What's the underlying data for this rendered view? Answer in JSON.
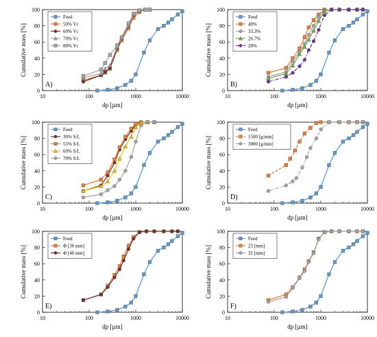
{
  "chart_data": [
    {
      "type": "line",
      "panel_label": "A)",
      "xlabel": "dp [µm]",
      "ylabel": "Cumulative mass [%]",
      "xscale": "log",
      "xlim": [
        10,
        10000
      ],
      "ylim": [
        0,
        100
      ],
      "xticks": [
        "10",
        "100",
        "1000",
        "10000"
      ],
      "yticks": [
        "0",
        "20",
        "40",
        "60",
        "80",
        "100"
      ],
      "grid": false,
      "legend_position": "top-left",
      "series": [
        {
          "name": "Feed",
          "color": "#5b9bd5",
          "marker": "square",
          "dash": "solid",
          "x": [
            150,
            250,
            400,
            600,
            800,
            1000,
            1500,
            2000,
            3000,
            4000,
            5000,
            6000,
            8000,
            10000
          ],
          "y": [
            0,
            1,
            3,
            7,
            12,
            20,
            47,
            62,
            76,
            80,
            84,
            88,
            94,
            98
          ]
        },
        {
          "name": "50% Vc",
          "color": "#ed7d31",
          "marker": "square",
          "dash": "solid",
          "x": [
            75,
            180,
            220,
            280,
            400,
            500,
            700,
            900,
            1200,
            1600,
            2000
          ],
          "y": [
            13,
            19,
            22,
            27,
            50,
            62,
            77,
            90,
            97,
            100,
            100
          ]
        },
        {
          "name": "60% Vc",
          "color": "#7b2c2c",
          "marker": "circle",
          "dash": "solid",
          "x": [
            75,
            180,
            220,
            280,
            400,
            500,
            700,
            900,
            1200,
            1600,
            2000
          ],
          "y": [
            11,
            19,
            23,
            28,
            52,
            64,
            80,
            93,
            99,
            100,
            100
          ]
        },
        {
          "name": "70% Vc",
          "color": "#a5a5a5",
          "marker": "triangle",
          "dash": "solid",
          "x": [
            75,
            180,
            220,
            280,
            400,
            500,
            700,
            900,
            1200,
            1600,
            2000
          ],
          "y": [
            16,
            21,
            27,
            31,
            54,
            65,
            81,
            94,
            99,
            100,
            100
          ]
        },
        {
          "name": "80% Vc",
          "color": "#a5a5a5",
          "marker": "square",
          "dash": "solid",
          "x": [
            75,
            180,
            220,
            280,
            400,
            500,
            700,
            900,
            1200,
            1600,
            2000
          ],
          "y": [
            18,
            26,
            34,
            44,
            56,
            66,
            83,
            95,
            99,
            100,
            100
          ]
        }
      ]
    },
    {
      "type": "line",
      "panel_label": "B)",
      "xlabel": "dp [µm]",
      "ylabel": "Cumulative mass [%]",
      "xscale": "log",
      "xlim": [
        10,
        10000
      ],
      "ylim": [
        0,
        100
      ],
      "xticks": [
        "10",
        "100",
        "1000",
        "10000"
      ],
      "yticks": [
        "0",
        "20",
        "40",
        "60",
        "80",
        "100"
      ],
      "grid": false,
      "legend_position": "top-left",
      "series": [
        {
          "name": "Feed",
          "color": "#5b9bd5",
          "marker": "square",
          "dash": "solid",
          "x": [
            150,
            250,
            400,
            600,
            800,
            1000,
            1500,
            2000,
            3000,
            4000,
            5000,
            6000,
            8000,
            10000
          ],
          "y": [
            0,
            1,
            3,
            7,
            12,
            20,
            47,
            62,
            76,
            80,
            84,
            88,
            94,
            98
          ]
        },
        {
          "name": "40%",
          "color": "#ed7d31",
          "marker": "square",
          "dash": "solid",
          "x": [
            75,
            180,
            250,
            350,
            450,
            550,
            700,
            900,
            1200,
            1700,
            2500,
            4000,
            6000,
            8000
          ],
          "y": [
            22,
            28,
            40,
            52,
            66,
            78,
            87,
            94,
            100,
            100,
            100,
            100,
            100,
            100
          ]
        },
        {
          "name": "33.3%",
          "color": "#a5a5a5",
          "marker": "circle",
          "dash": "solid",
          "x": [
            75,
            180,
            250,
            350,
            450,
            550,
            700,
            900,
            1200,
            1700,
            2500,
            4000,
            6000,
            8000
          ],
          "y": [
            17,
            23,
            36,
            48,
            58,
            69,
            80,
            91,
            99,
            100,
            100,
            100,
            100,
            100
          ]
        },
        {
          "name": "26.7%",
          "color": "#70ad47",
          "marker": "triangle",
          "dash": "solid",
          "x": [
            75,
            180,
            250,
            350,
            450,
            550,
            700,
            900,
            1200,
            1700,
            2500,
            4000,
            6000,
            8000
          ],
          "y": [
            15,
            21,
            31,
            45,
            54,
            63,
            74,
            86,
            98,
            100,
            100,
            100,
            100,
            100
          ]
        },
        {
          "name": "20%",
          "color": "#7030a0",
          "marker": "circle",
          "dash": "dashdot",
          "x": [
            75,
            180,
            250,
            350,
            450,
            550,
            700,
            900,
            1200,
            1700,
            2500,
            4000,
            6000,
            8000
          ],
          "y": [
            11,
            17,
            22,
            30,
            38,
            50,
            61,
            75,
            93,
            100,
            100,
            100,
            100,
            100
          ]
        }
      ]
    },
    {
      "type": "line",
      "panel_label": "C)",
      "xlabel": "dp [µm]",
      "ylabel": "Cumulative mass [%]",
      "xscale": "log",
      "xlim": [
        10,
        10000
      ],
      "ylim": [
        0,
        100
      ],
      "xticks": [
        "10",
        "100",
        "1000",
        "10000"
      ],
      "yticks": [
        "0",
        "20",
        "40",
        "60",
        "80",
        "100"
      ],
      "grid": false,
      "legend_position": "top-left",
      "series": [
        {
          "name": "Feed",
          "color": "#5b9bd5",
          "marker": "square",
          "dash": "solid",
          "x": [
            150,
            250,
            400,
            600,
            800,
            1000,
            1500,
            2000,
            3000,
            4000,
            5000,
            6000,
            8000,
            10000
          ],
          "y": [
            0,
            1,
            3,
            7,
            12,
            20,
            47,
            62,
            76,
            80,
            84,
            88,
            94,
            98
          ]
        },
        {
          "name": "30% S/L",
          "color": "#7b2c2c",
          "marker": "circle",
          "dash": "solid",
          "x": [
            75,
            180,
            250,
            350,
            450,
            600,
            800,
            1000,
            1300,
            1800,
            2500
          ],
          "y": [
            15,
            22,
            34,
            50,
            66,
            79,
            89,
            97,
            100,
            100,
            100
          ]
        },
        {
          "name": "55% S/L",
          "color": "#ed7d31",
          "marker": "square",
          "dash": "solid",
          "x": [
            75,
            180,
            250,
            350,
            450,
            600,
            800,
            1000,
            1300,
            1800,
            2500
          ],
          "y": [
            22,
            29,
            38,
            54,
            69,
            82,
            92,
            98,
            100,
            100,
            100
          ]
        },
        {
          "name": "60% S/L",
          "color": "#ffc000",
          "marker": "triangle",
          "dash": "solid",
          "x": [
            75,
            180,
            250,
            350,
            450,
            600,
            800,
            1000,
            1300,
            1800,
            2500
          ],
          "y": [
            15,
            21,
            27,
            40,
            55,
            70,
            82,
            94,
            99,
            100,
            100
          ]
        },
        {
          "name": "70% S/L",
          "color": "#a5a5a5",
          "marker": "circle",
          "dash": "solid",
          "x": [
            75,
            180,
            250,
            350,
            450,
            600,
            800,
            1000,
            1300,
            1800,
            2500
          ],
          "y": [
            7,
            11,
            16,
            21,
            29,
            40,
            57,
            76,
            96,
            100,
            100
          ]
        }
      ]
    },
    {
      "type": "line",
      "panel_label": "D)",
      "xlabel": "dp [µm]",
      "ylabel": "Cumulative mass [%]",
      "xscale": "log",
      "xlim": [
        10,
        10000
      ],
      "ylim": [
        0,
        100
      ],
      "xticks": [
        "10",
        "100",
        "1000",
        "10000"
      ],
      "yticks": [
        "0",
        "20",
        "40",
        "60",
        "80",
        "100"
      ],
      "grid": false,
      "legend_position": "top-left",
      "series": [
        {
          "name": "Feed",
          "color": "#5b9bd5",
          "marker": "square",
          "dash": "solid",
          "x": [
            150,
            250,
            400,
            600,
            800,
            1000,
            1500,
            2000,
            3000,
            4000,
            5000,
            6000,
            8000,
            10000
          ],
          "y": [
            0,
            1,
            3,
            7,
            12,
            20,
            47,
            62,
            76,
            80,
            84,
            88,
            94,
            98
          ]
        },
        {
          "name": "1500 [g/min]",
          "color": "#ed7d31",
          "marker": "square",
          "dash": "dashed",
          "x": [
            75,
            180,
            220,
            280,
            350,
            450,
            600,
            800,
            1000,
            1500,
            2500,
            4000,
            6000,
            8000
          ],
          "y": [
            34,
            47,
            55,
            65,
            76,
            86,
            93,
            99,
            100,
            100,
            100,
            100,
            100,
            100
          ]
        },
        {
          "name": "3000 [g/min]",
          "color": "#a5a5a5",
          "marker": "circle",
          "dash": "dashdot",
          "x": [
            75,
            180,
            250,
            300,
            400,
            500,
            600,
            800,
            1000,
            1500,
            2500,
            4000,
            6000,
            8000
          ],
          "y": [
            15,
            22,
            27,
            31,
            44,
            57,
            68,
            80,
            91,
            100,
            100,
            100,
            100,
            100
          ]
        }
      ]
    },
    {
      "type": "line",
      "panel_label": "E)",
      "xlabel": "dp [µm]",
      "ylabel": "Cumulative mass [%]",
      "xscale": "log",
      "xlim": [
        10,
        10000
      ],
      "ylim": [
        0,
        100
      ],
      "xticks": [
        "10",
        "100",
        "1000",
        "10000"
      ],
      "yticks": [
        "0",
        "20",
        "40",
        "60",
        "80",
        "100"
      ],
      "grid": false,
      "legend_position": "top-left",
      "series": [
        {
          "name": "Feed",
          "color": "#5b9bd5",
          "marker": "square",
          "dash": "solid",
          "x": [
            150,
            250,
            400,
            600,
            800,
            1000,
            1500,
            2000,
            3000,
            4000,
            5000,
            6000,
            8000,
            10000
          ],
          "y": [
            0,
            1,
            3,
            7,
            12,
            20,
            47,
            62,
            76,
            80,
            84,
            88,
            94,
            98
          ]
        },
        {
          "name": "Φ [30 mm]",
          "color": "#ed7d31",
          "marker": "square",
          "dash": "solid",
          "x": [
            75,
            180,
            250,
            350,
            450,
            550,
            700,
            900,
            1200,
            1700,
            2500,
            4000,
            6000,
            8000
          ],
          "y": [
            15,
            22,
            33,
            46,
            57,
            69,
            82,
            93,
            99,
            100,
            100,
            100,
            100,
            100
          ]
        },
        {
          "name": "Φ [40 mm]",
          "color": "#7b2c2c",
          "marker": "circle",
          "dash": "solid",
          "x": [
            75,
            180,
            250,
            350,
            450,
            550,
            700,
            900,
            1200,
            1700,
            2500,
            4000,
            6000,
            8000
          ],
          "y": [
            15,
            22,
            31,
            43,
            53,
            64,
            78,
            91,
            99,
            100,
            100,
            100,
            100,
            100
          ]
        }
      ]
    },
    {
      "type": "line",
      "panel_label": "F)",
      "xlabel": "dp [µm]",
      "ylabel": "Cumulative mass [%]",
      "xscale": "log",
      "xlim": [
        10,
        10000
      ],
      "ylim": [
        0,
        100
      ],
      "xticks": [
        "10",
        "100",
        "1000",
        "10000"
      ],
      "yticks": [
        "0",
        "20",
        "40",
        "60",
        "80",
        "100"
      ],
      "grid": false,
      "legend_position": "top-left",
      "series": [
        {
          "name": "Feed",
          "color": "#5b9bd5",
          "marker": "square",
          "dash": "solid",
          "x": [
            150,
            250,
            400,
            600,
            800,
            1000,
            1500,
            2000,
            3000,
            4000,
            5000,
            6000,
            8000,
            10000
          ],
          "y": [
            0,
            1,
            3,
            7,
            12,
            20,
            47,
            62,
            76,
            80,
            84,
            88,
            94,
            98
          ]
        },
        {
          "name": "23 [mm]",
          "color": "#ed7d31",
          "marker": "square",
          "dash": "solid",
          "x": [
            75,
            180,
            250,
            350,
            450,
            550,
            700,
            900,
            1200,
            1700,
            2500,
            4000,
            6000,
            8000
          ],
          "y": [
            15,
            22,
            31,
            43,
            53,
            63,
            74,
            91,
            99,
            100,
            100,
            100,
            100,
            100
          ]
        },
        {
          "name": "35 [mm]",
          "color": "#a5a5a5",
          "marker": "circle",
          "dash": "solid",
          "x": [
            75,
            180,
            250,
            350,
            450,
            550,
            700,
            900,
            1200,
            1700,
            2500,
            4000,
            6000,
            8000
          ],
          "y": [
            13,
            19,
            30,
            42,
            51,
            62,
            73,
            90,
            99,
            100,
            100,
            100,
            100,
            100
          ]
        }
      ]
    }
  ]
}
